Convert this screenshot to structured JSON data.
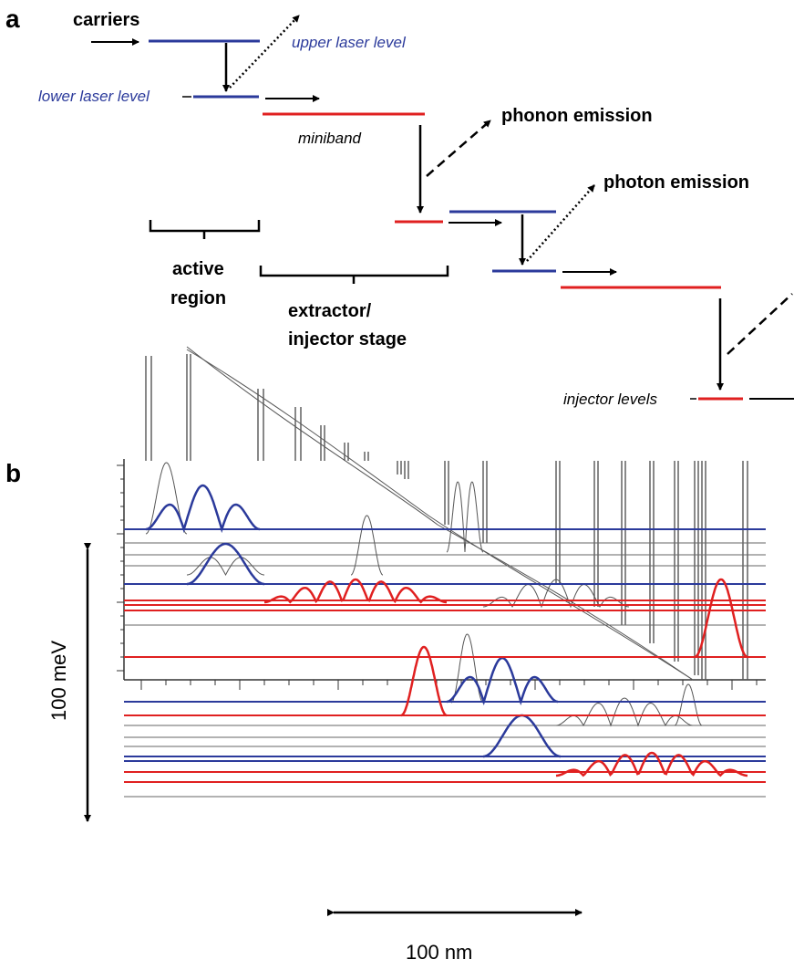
{
  "panel_a": {
    "letter": "a",
    "carriers": "carriers",
    "upper_laser_level": "upper laser level",
    "lower_laser_level": "lower laser level",
    "miniband": "miniband",
    "phonon_emission": "phonon emission",
    "photon_emission": "photon emission",
    "active_region_line1": "active",
    "active_region_line2": "region",
    "extractor_line1": "extractor/",
    "extractor_line2": "injector stage",
    "injector_levels": "injector levels"
  },
  "panel_b": {
    "letter": "b",
    "energy_scale": "100 meV",
    "length_scale": "100 nm"
  },
  "colors": {
    "blue": "#2b3a9b",
    "red": "#e02020",
    "black": "#000000",
    "gray": "#555555"
  }
}
